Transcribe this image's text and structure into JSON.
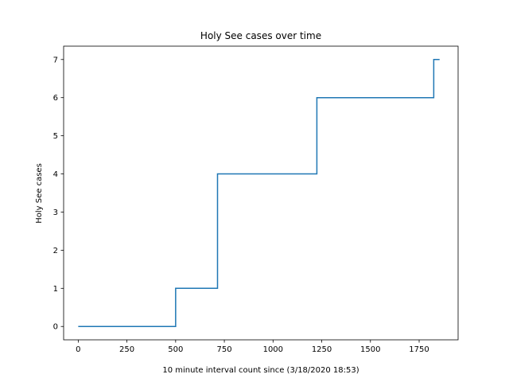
{
  "chart_data": {
    "type": "line",
    "title": "Holy See cases over time",
    "xlabel": "10 minute interval count since (3/18/2020 18:53)",
    "ylabel": "Holy See cases",
    "xlim": [
      -75,
      1950
    ],
    "ylim": [
      -0.35,
      7.35
    ],
    "xticks": [
      0,
      250,
      500,
      750,
      1000,
      1250,
      1500,
      1750
    ],
    "yticks": [
      0,
      1,
      2,
      3,
      4,
      5,
      6,
      7
    ],
    "grid": false,
    "legend": "none",
    "series": [
      {
        "color": "#1f77b4",
        "x": [
          0,
          500,
          500,
          715,
          715,
          1225,
          1225,
          1825,
          1825,
          1855
        ],
        "y": [
          0,
          0,
          1,
          1,
          4,
          4,
          6,
          6,
          7,
          7
        ]
      }
    ]
  }
}
